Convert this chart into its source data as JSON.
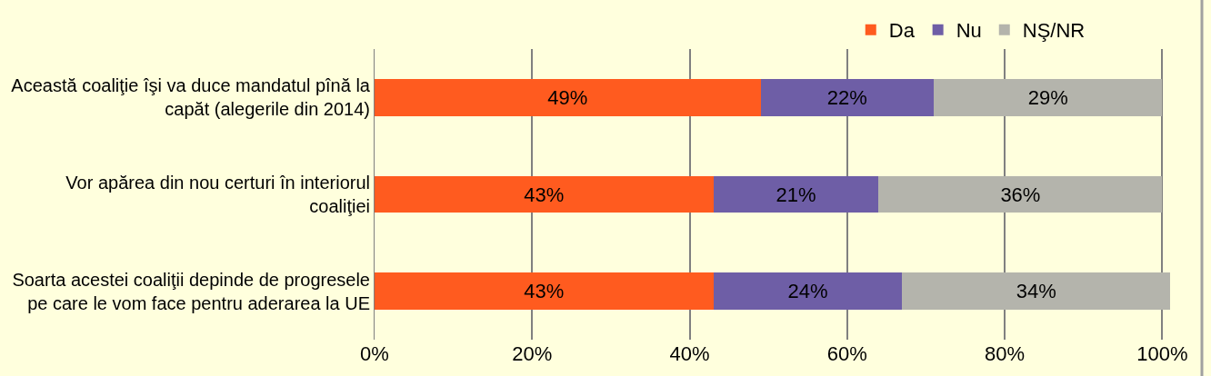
{
  "chart_data": {
    "type": "bar",
    "orientation": "horizontal",
    "stacked": true,
    "categories": [
      "Această coaliţie îşi va duce mandatul pînă la capăt (alegerile din 2014)",
      "Vor apărea din nou certuri în interiorul coaliţiei",
      "Soarta acestei coaliţii depinde de progresele pe care le vom face pentru aderarea la UE"
    ],
    "series": [
      {
        "name": "Da",
        "color": "#ff5b1f",
        "values": [
          49,
          43,
          43
        ],
        "value_labels": [
          "49%",
          "43%",
          "43%"
        ]
      },
      {
        "name": "Nu",
        "color": "#6e5ea6",
        "values": [
          22,
          21,
          24
        ],
        "value_labels": [
          "22%",
          "21%",
          "24%"
        ]
      },
      {
        "name": "NŞ/NR",
        "color": "#b4b4ac",
        "values": [
          29,
          36,
          34
        ],
        "value_labels": [
          "29%",
          "36%",
          "34%"
        ]
      }
    ],
    "xlim": [
      0,
      101
    ],
    "xticks": [
      {
        "value": 0,
        "label": "0%"
      },
      {
        "value": 20,
        "label": "20%"
      },
      {
        "value": 40,
        "label": "40%"
      },
      {
        "value": 60,
        "label": "60%"
      },
      {
        "value": 80,
        "label": "80%"
      },
      {
        "value": 100,
        "label": "100%"
      }
    ],
    "grid": "x",
    "legend": "top"
  }
}
